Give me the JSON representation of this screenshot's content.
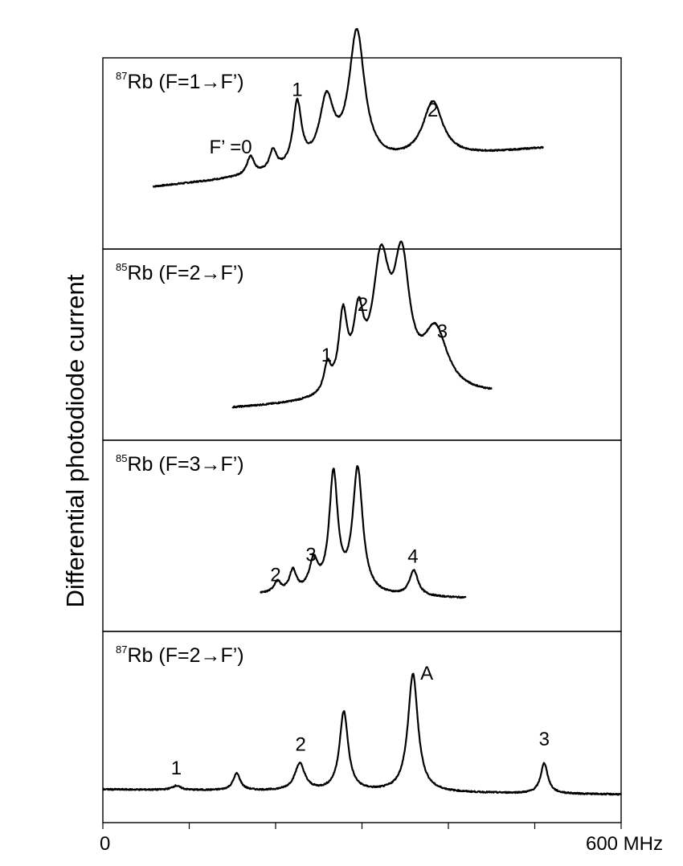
{
  "ylabel": "Differential photodiode current",
  "xaxis": {
    "ticks": [
      0,
      100,
      200,
      300,
      400,
      500,
      600
    ],
    "tick_labels": [
      {
        "value": 0,
        "text": "0"
      },
      {
        "value": 600,
        "text": "600 MHz"
      }
    ]
  },
  "chart_data": [
    {
      "type": "line",
      "isotope": "87",
      "transition": "Rb (F=1→F’)",
      "x_range": [
        0,
        600
      ],
      "baseline": {
        "x": [
          58,
          510
        ],
        "y": [
          0.3,
          0.53
        ]
      },
      "peaks": [
        {
          "x": 171,
          "height": 0.11,
          "width": 5
        },
        {
          "x": 197,
          "height": 0.12,
          "width": 5
        },
        {
          "x": 225,
          "height": 0.38,
          "width": 6
        },
        {
          "x": 259,
          "height": 0.38,
          "width": 10
        },
        {
          "x": 294,
          "height": 0.78,
          "width": 11
        },
        {
          "x": 382,
          "height": 0.33,
          "width": 14
        }
      ],
      "annotations": [
        {
          "text": "F’ =0",
          "x": 148,
          "y": 0.5
        },
        {
          "text": "1",
          "x": 225,
          "y": 0.84
        },
        {
          "text": "2",
          "x": 382,
          "y": 0.72
        }
      ]
    },
    {
      "type": "line",
      "isotope": "85",
      "transition": "Rb (F=2→F’)",
      "x_range": [
        0,
        600
      ],
      "baseline": {
        "x": [
          150,
          450
        ],
        "y": [
          0.12,
          0.2
        ]
      },
      "peaks": [
        {
          "x": 260,
          "height": 0.16,
          "width": 5
        },
        {
          "x": 278,
          "height": 0.44,
          "width": 6
        },
        {
          "x": 296,
          "height": 0.4,
          "width": 7
        },
        {
          "x": 322,
          "height": 0.74,
          "width": 12
        },
        {
          "x": 346,
          "height": 0.72,
          "width": 11
        },
        {
          "x": 385,
          "height": 0.36,
          "width": 17
        }
      ],
      "annotations": [
        {
          "text": "1",
          "x": 259,
          "y": 0.4
        },
        {
          "text": "2",
          "x": 301,
          "y": 0.7
        },
        {
          "text": "3",
          "x": 393,
          "y": 0.54
        }
      ]
    },
    {
      "type": "line",
      "isotope": "85",
      "transition": "Rb (F=3→F’)",
      "x_range": [
        0,
        600
      ],
      "baseline": {
        "x": [
          182,
          420
        ],
        "y": [
          0.15,
          0.13
        ]
      },
      "peaks": [
        {
          "x": 202,
          "height": 0.065,
          "width": 5
        },
        {
          "x": 220,
          "height": 0.13,
          "width": 5
        },
        {
          "x": 244,
          "height": 0.18,
          "width": 6
        },
        {
          "x": 267,
          "height": 0.7,
          "width": 6
        },
        {
          "x": 295,
          "height": 0.74,
          "width": 7
        },
        {
          "x": 360,
          "height": 0.15,
          "width": 6
        }
      ],
      "annotations": [
        {
          "text": "2",
          "x": 200,
          "y": 0.23
        },
        {
          "text": "3",
          "x": 241,
          "y": 0.35
        },
        {
          "text": "4",
          "x": 359,
          "y": 0.34
        }
      ]
    },
    {
      "type": "line",
      "isotope": "87",
      "transition": "Rb (F=2→F’)",
      "x_range": [
        0,
        600
      ],
      "baseline": {
        "x": [
          0,
          600
        ],
        "y": [
          0.13,
          0.1
        ]
      },
      "peaks": [
        {
          "x": 85,
          "height": 0.025,
          "width": 6
        },
        {
          "x": 155,
          "height": 0.1,
          "width": 5
        },
        {
          "x": 228,
          "height": 0.16,
          "width": 7
        },
        {
          "x": 279,
          "height": 0.47,
          "width": 6
        },
        {
          "x": 359,
          "height": 0.7,
          "width": 7
        },
        {
          "x": 511,
          "height": 0.18,
          "width": 5
        }
      ],
      "annotations": [
        {
          "text": "1",
          "x": 85,
          "y": 0.22
        },
        {
          "text": "2",
          "x": 229,
          "y": 0.36
        },
        {
          "text": "A",
          "x": 375,
          "y": 0.78
        },
        {
          "text": "3",
          "x": 511,
          "y": 0.39
        }
      ]
    }
  ]
}
